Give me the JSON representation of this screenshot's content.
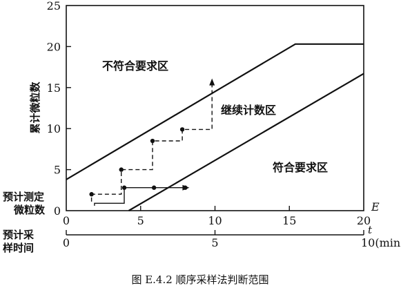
{
  "chart_data": {
    "type": "line",
    "title": "",
    "ylabel": "累计微粒数",
    "xlabel_top": "E",
    "xlabel_bottom": "t",
    "xlim": [
      0,
      20
    ],
    "ylim": [
      0,
      25
    ],
    "x_ticks": [
      "0",
      "5",
      "10",
      "15",
      "20"
    ],
    "y_ticks": [
      "0",
      "5",
      "10",
      "15",
      "20",
      "25"
    ],
    "time_ticks": [
      "0",
      "5",
      "10(min)"
    ],
    "time_values": [
      0,
      5,
      10
    ],
    "secondary_axis_label": "预计采样时间",
    "bottom_left_label": "预计测定微粒数",
    "regions": {
      "reject": "不符合要求区",
      "continue": "继续计数区",
      "accept": "符合要求区"
    },
    "series": [
      {
        "role": "upper-boundary",
        "style": "solid",
        "points": [
          [
            0,
            3.8
          ],
          [
            15.4,
            20.3
          ],
          [
            20,
            20.3
          ]
        ]
      },
      {
        "role": "lower-boundary",
        "style": "solid",
        "points": [
          [
            4.2,
            0
          ],
          [
            20,
            16.7
          ]
        ]
      },
      {
        "role": "sample-path-1",
        "style": "dashed",
        "marker": "dot",
        "arrow_end": "up",
        "points": [
          [
            1.7,
            1.1
          ],
          [
            1.7,
            2.0
          ],
          [
            3.7,
            2.0
          ],
          [
            3.7,
            5.0
          ],
          [
            5.8,
            5.0
          ],
          [
            5.8,
            8.5
          ],
          [
            7.8,
            8.5
          ],
          [
            7.8,
            9.9
          ],
          [
            9.8,
            9.9
          ],
          [
            9.8,
            15.6
          ]
        ]
      },
      {
        "role": "sample-path-2",
        "style": "solid",
        "marker": "dot",
        "arrow_end": "right",
        "points": [
          [
            1.9,
            0.6
          ],
          [
            1.9,
            0.9
          ],
          [
            3.9,
            0.9
          ],
          [
            3.9,
            2.8
          ],
          [
            8.0,
            2.8
          ]
        ]
      }
    ],
    "markers": [
      [
        1.7,
        2.0
      ],
      [
        3.7,
        5.0
      ],
      [
        5.8,
        8.5
      ],
      [
        7.8,
        9.9
      ],
      [
        3.9,
        2.8
      ],
      [
        5.9,
        2.8
      ],
      [
        8.0,
        2.8
      ]
    ]
  },
  "caption": "图 E.4.2   顺序采样法判断范围"
}
